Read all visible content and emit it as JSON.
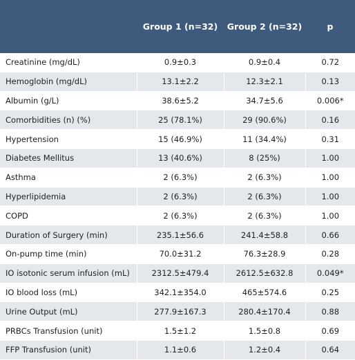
{
  "header": [
    "",
    "Group 1 (n=32)",
    "Group 2 (n=32)",
    "p"
  ],
  "rows": [
    [
      "Creatinine (mg/dL)",
      "0.9±0.3",
      "0.9±0.4",
      "0.72"
    ],
    [
      "Hemoglobin (mg/dL)",
      "13.1±2.2",
      "12.3±2.1",
      "0.13"
    ],
    [
      "Albumin (g/L)",
      "38.6±5.2",
      "34.7±5.6",
      "0.006*"
    ],
    [
      "Comorbidities (n) (%)",
      "25 (78.1%)",
      "29 (90.6%)",
      "0.16"
    ],
    [
      "Hypertension",
      "15 (46.9%)",
      "11 (34.4%)",
      "0.31"
    ],
    [
      "Diabetes Mellitus",
      "13 (40.6%)",
      "8 (25%)",
      "1.00"
    ],
    [
      "Asthma",
      "2 (6.3%)",
      "2 (6.3%)",
      "1.00"
    ],
    [
      "Hyperlipidemia",
      "2 (6.3%)",
      "2 (6.3%)",
      "1.00"
    ],
    [
      "COPD",
      "2 (6.3%)",
      "2 (6.3%)",
      "1.00"
    ],
    [
      "Duration of Surgery (min)",
      "235.1±56.6",
      "241.4±58.8",
      "0.66"
    ],
    [
      "On-pump time (min)",
      "70.0±31.2",
      "76.3±28.9",
      "0.28"
    ],
    [
      "IO isotonic serum infusion (mL)",
      "2312.5±479.4",
      "2612.5±632.8",
      "0.049*"
    ],
    [
      "IO blood loss (mL)",
      "342.1±354.0",
      "465±574.6",
      "0.25"
    ],
    [
      "Urine Output (mL)",
      "277.9±167.3",
      "280.4±170.4",
      "0.88"
    ],
    [
      "PRBCs Transfusion (unit)",
      "1.5±1.2",
      "1.5±0.8",
      "0.69"
    ],
    [
      "FFP Transfusion (unit)",
      "1.1±0.6",
      "1.2±0.4",
      "0.64"
    ]
  ]
}
